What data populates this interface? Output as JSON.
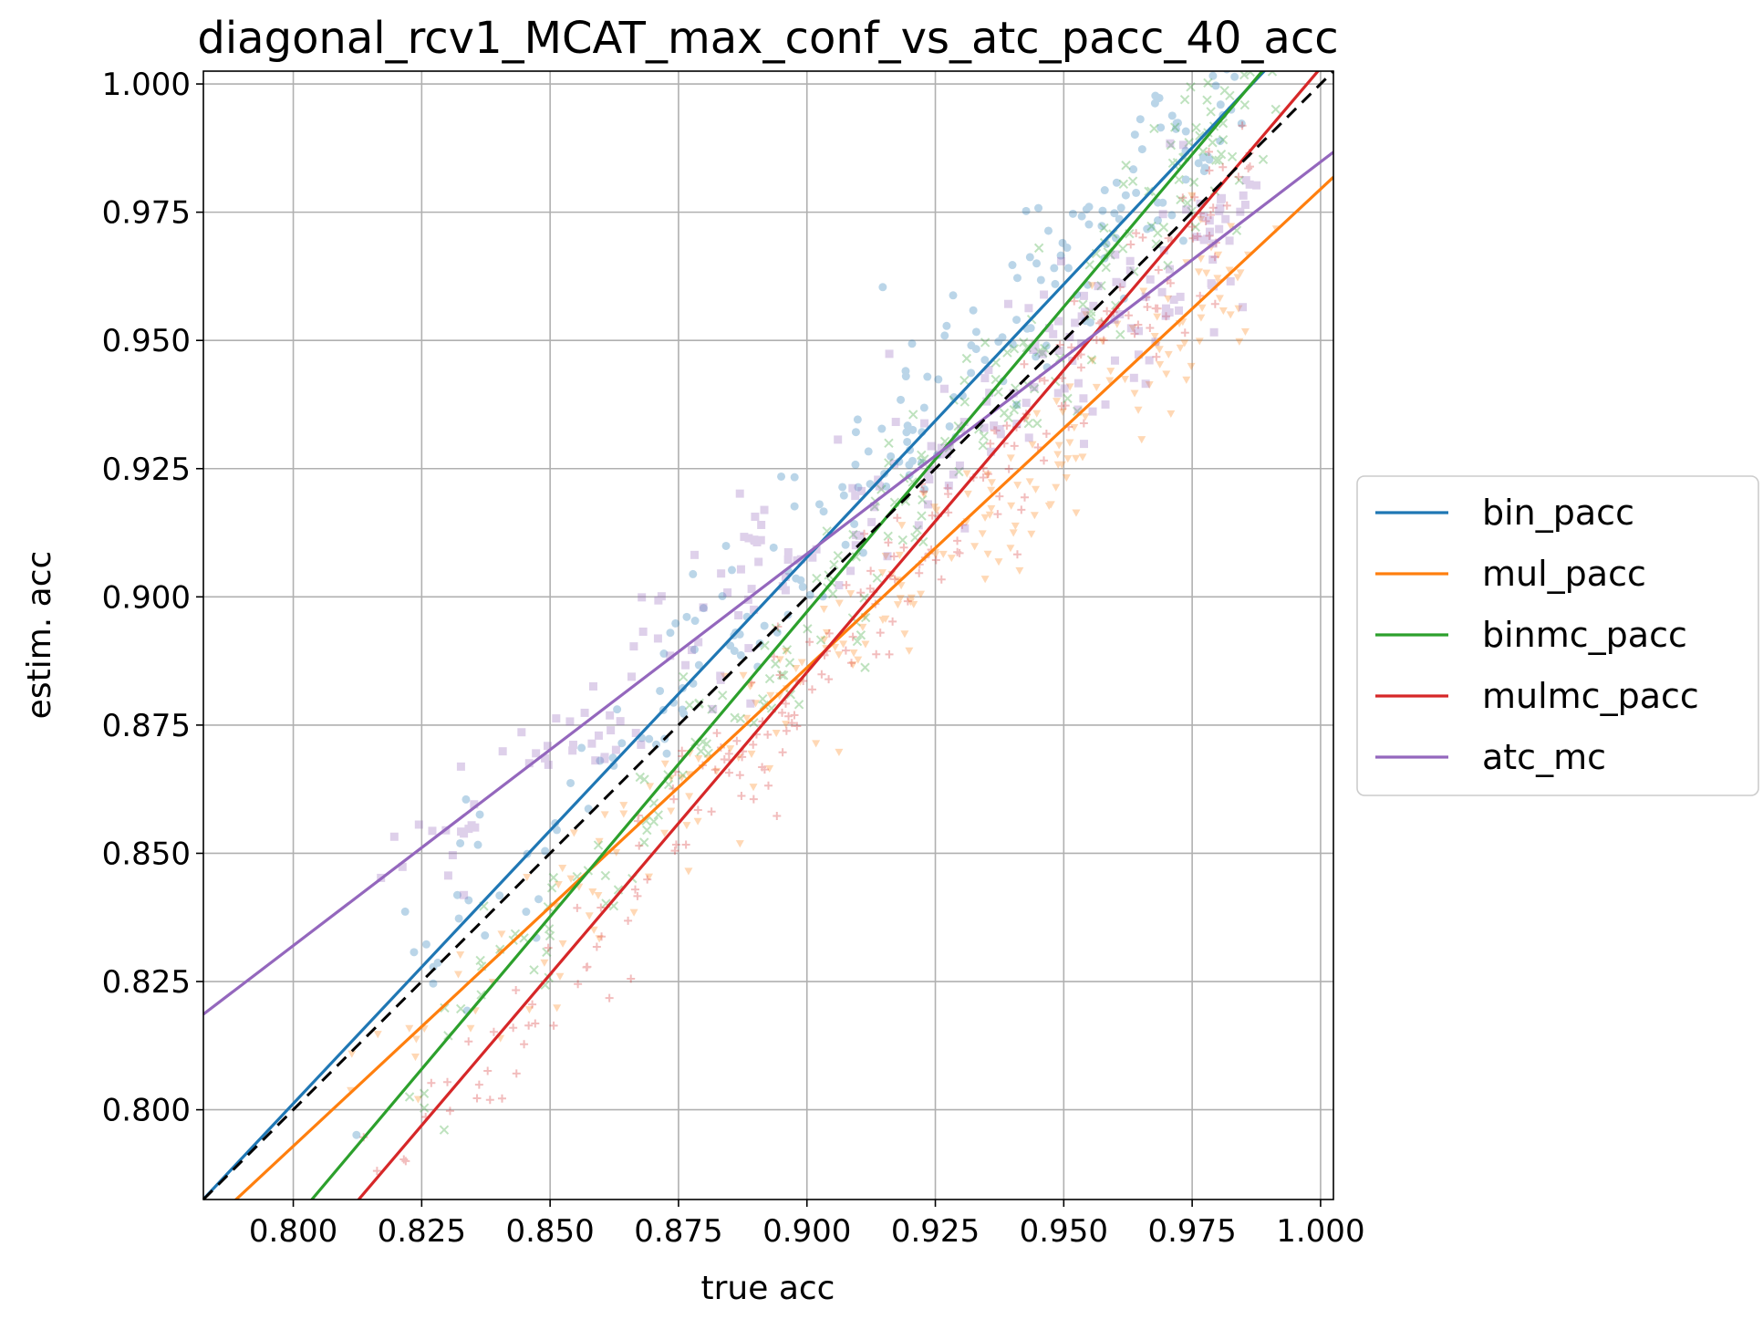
{
  "chart_data": {
    "type": "scatter",
    "title": "diagonal_rcv1_MCAT_max_conf_vs_atc_pacc_40_acc",
    "xlabel": "true acc",
    "ylabel": "estim. acc",
    "xlim": [
      0.7825,
      1.0025
    ],
    "ylim": [
      0.7825,
      1.0025
    ],
    "xticks": [
      0.8,
      0.825,
      0.85,
      0.875,
      0.9,
      0.925,
      0.95,
      0.975,
      1.0
    ],
    "yticks": [
      0.8,
      0.825,
      0.85,
      0.875,
      0.9,
      0.925,
      0.95,
      0.975,
      1.0
    ],
    "tick_labels": [
      "0.800",
      "0.825",
      "0.850",
      "0.875",
      "0.900",
      "0.925",
      "0.950",
      "0.975",
      "1.000"
    ],
    "grid": true,
    "legend_position": "center-right-outside",
    "diagonal": {
      "style": "dashed",
      "color": "#000000",
      "from": [
        0.7825,
        0.7825
      ],
      "to": [
        1.0025,
        1.0025
      ]
    },
    "scatter_x_range": [
      0.815,
      0.985
    ],
    "series": [
      {
        "name": "bin_pacc",
        "color": "#1f77b4",
        "marker": "circle",
        "fit": {
          "slope": 1.065,
          "intercept": -0.0508
        },
        "point_offset": 0.009,
        "point_spread": 0.009
      },
      {
        "name": "mul_pacc",
        "color": "#ff7f0e",
        "marker": "triangle-down",
        "fit": {
          "slope": 0.933,
          "intercept": 0.0465
        },
        "point_offset": -0.006,
        "point_spread": 0.008
      },
      {
        "name": "binmc_pacc",
        "color": "#2ca02c",
        "marker": "x",
        "fit": {
          "slope": 1.189,
          "intercept": -0.173
        },
        "point_offset": -0.005,
        "point_spread": 0.008
      },
      {
        "name": "mulmc_pacc",
        "color": "#d62728",
        "marker": "plus",
        "fit": {
          "slope": 1.178,
          "intercept": -0.1749
        },
        "point_offset": -0.009,
        "point_spread": 0.008
      },
      {
        "name": "atc_mc",
        "color": "#9467bd",
        "marker": "square",
        "fit": {
          "slope": 0.764,
          "intercept": 0.2208
        },
        "point_offset": 0.0,
        "point_spread": 0.008
      }
    ]
  }
}
